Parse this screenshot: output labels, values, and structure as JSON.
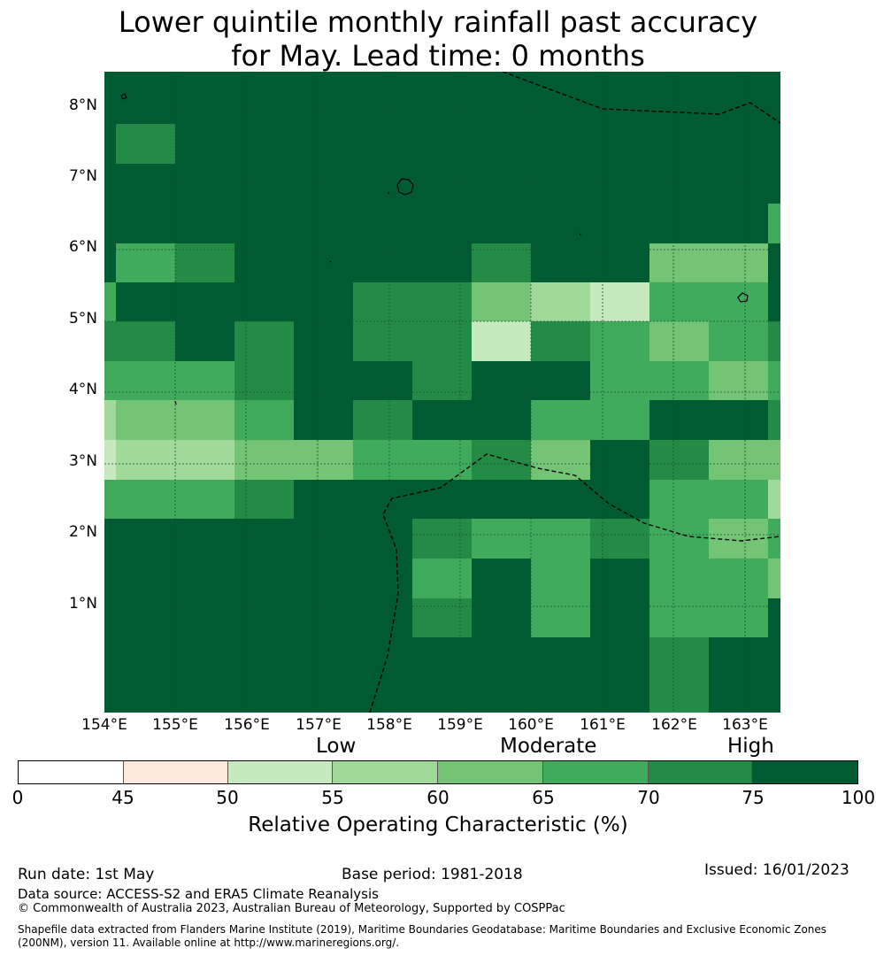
{
  "title_line1": "Lower quintile monthly rainfall past accuracy",
  "title_line2": "for May. Lead time: 0 months",
  "map": {
    "lon_range": [
      154,
      163.5
    ],
    "lat_range": [
      -0.2,
      8.5
    ],
    "lat_ticks": [
      "8°N",
      "7°N",
      "6°N",
      "5°N",
      "4°N",
      "3°N",
      "2°N",
      "1°N"
    ],
    "lon_ticks": [
      "154°E",
      "155°E",
      "156°E",
      "157°E",
      "158°E",
      "159°E",
      "160°E",
      "161°E",
      "162°E",
      "163°E"
    ],
    "cell_colors": [
      "#005a32",
      "#238b45",
      "#41ab5d",
      "#74c476",
      "#a1d99b",
      "#c7e9c0"
    ]
  },
  "legend": {
    "category_low": "Low",
    "category_moderate": "Moderate",
    "category_high": "High",
    "tick_labels": [
      "0",
      "45",
      "50",
      "55",
      "60",
      "65",
      "70",
      "75",
      "100"
    ],
    "colors": [
      "#ffffff",
      "#fee8de",
      "#c7e9c0",
      "#a1d99b",
      "#74c476",
      "#41ab5d",
      "#238b45",
      "#005a32"
    ],
    "title": "Relative Operating Characteristic (%)"
  },
  "footer": {
    "run_date": "Run date: 1st May",
    "base_period": "Base period: 1981-2018",
    "issued": "Issued: 16/01/2023",
    "data_source": "Data source: ACCESS-S2 and ERA5 Climate Reanalysis",
    "copyright": "© Commonwealth of Australia 2023, Australian Bureau of Meteorology, Supported by COSPPac",
    "shapefile_line1": "Shapefile data extracted from Flanders Marine Institute (2019), Maritime Boundaries Geodatabase: Maritime Boundaries and Exclusive Economic Zones",
    "shapefile_line2": "(200NM), version 11. Available online at http://www.marineregions.org/."
  }
}
